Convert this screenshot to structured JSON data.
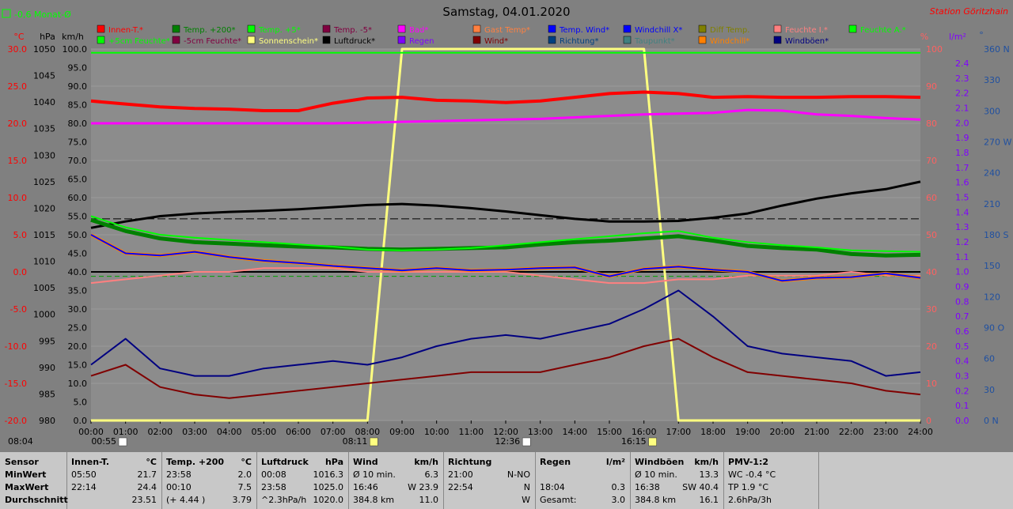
{
  "header": {
    "title": "Samstag, 04.01.2020",
    "station": "Station Göritzhain",
    "month_avg": "-0,6 Monat-Ø"
  },
  "legend": {
    "row1": [
      {
        "label": "Innen-T.*",
        "color": "#ff0000"
      },
      {
        "label": "Temp. +200*",
        "color": "#008000"
      },
      {
        "label": "Temp. +5*",
        "color": "#00ff00"
      },
      {
        "label": "Temp. -5*",
        "color": "#800040"
      },
      {
        "label": "Bad*",
        "color": "#ff00ff"
      },
      {
        "label": "Gast Temp*",
        "color": "#ff8040"
      },
      {
        "label": "Temp. Wind*",
        "color": "#0000ff"
      },
      {
        "label": "Windchill X*",
        "color": "#0000ff"
      },
      {
        "label": "Diff Temp.",
        "color": "#808000"
      },
      {
        "label": "Feuchte I.*",
        "color": "#ff8080"
      },
      {
        "label": "Feuchte A.*",
        "color": "#00ff00"
      }
    ],
    "row2": [
      {
        "label": "+5cm Feuchte*",
        "color": "#00ff00"
      },
      {
        "label": "-5cm Feuchte*",
        "color": "#800040"
      },
      {
        "label": "Sonnenschein*",
        "color": "#ffff80"
      },
      {
        "label": "Luftdruck*",
        "color": "#000000"
      },
      {
        "label": "Regen",
        "color": "#8000ff"
      },
      {
        "label": "Wind*",
        "color": "#800000"
      },
      {
        "label": "Richtung*",
        "color": "#004080"
      },
      {
        "label": "Taupunkt*",
        "color": "#408080"
      },
      {
        "label": "Windchill*",
        "color": "#ff8000"
      },
      {
        "label": "Windböen*",
        "color": "#000080"
      }
    ]
  },
  "axis_units": {
    "c": "°C",
    "hpa": "hPa",
    "kmh": "km/h",
    "pct": "%",
    "lm2": "l/m²",
    "deg": "°"
  },
  "axes": {
    "temp": [
      "30.0",
      "25.0",
      "20.0",
      "15.0",
      "10.0",
      "5.0",
      "0.0",
      "-5.0",
      "-10.0",
      "-15.0",
      "-20.0"
    ],
    "hpa": [
      "1050",
      "1045",
      "1040",
      "1035",
      "1030",
      "1025",
      "1020",
      "1015",
      "1010",
      "1005",
      "1000",
      "995",
      "990",
      "985",
      "980"
    ],
    "kmh": [
      "100.0",
      "95.0",
      "90.0",
      "85.0",
      "80.0",
      "75.0",
      "70.0",
      "65.0",
      "60.0",
      "55.0",
      "50.0",
      "45.0",
      "40.0",
      "35.0",
      "30.0",
      "25.0",
      "20.0",
      "15.0",
      "10.0",
      "5.0",
      "0.0"
    ],
    "pct": [
      "100",
      "90",
      "80",
      "70",
      "60",
      "50",
      "40",
      "30",
      "20",
      "10",
      "0"
    ],
    "rain": [
      "2.4",
      "2.3",
      "2.2",
      "2.1",
      "2.0",
      "1.9",
      "1.8",
      "1.7",
      "1.6",
      "1.5",
      "1.4",
      "1.3",
      "1.2",
      "1.1",
      "1.0",
      "0.9",
      "0.8",
      "0.7",
      "0.6",
      "0.5",
      "0.4",
      "0.3",
      "0.2",
      "0.1",
      "0.0"
    ],
    "dir": [
      "360 N",
      "330",
      "300",
      "270 W",
      "240",
      "210",
      "180 S",
      "150",
      "120",
      "90 O",
      "60",
      "30",
      "0 N"
    ],
    "time": [
      "00:00",
      "01:00",
      "02:00",
      "03:00",
      "04:00",
      "05:00",
      "06:00",
      "07:00",
      "08:00",
      "09:00",
      "10:00",
      "11:00",
      "12:00",
      "13:00",
      "14:00",
      "15:00",
      "16:00",
      "17:00",
      "18:00",
      "19:00",
      "20:00",
      "21:00",
      "22:00",
      "23:00",
      "24:00"
    ]
  },
  "sun_marks": {
    "sunrise_time": "08:11",
    "sunset_time": "16:15",
    "moonrise_time": "00:55",
    "moonset_time": "12:36",
    "day_start": "08:04"
  },
  "chart_data": {
    "type": "line",
    "title": "Samstag, 04.01.2020",
    "x_hours": [
      0,
      1,
      2,
      3,
      4,
      5,
      6,
      7,
      8,
      9,
      10,
      11,
      12,
      13,
      14,
      15,
      16,
      17,
      18,
      19,
      20,
      21,
      22,
      23,
      24
    ],
    "series": [
      {
        "name": "Innen-T.*",
        "unit": "°C",
        "color": "#ff0000",
        "values": [
          23.0,
          22.6,
          22.2,
          22.0,
          21.9,
          21.7,
          21.7,
          22.7,
          23.4,
          23.5,
          23.1,
          23.0,
          22.8,
          23.0,
          23.5,
          24.0,
          24.2,
          24.0,
          23.5,
          23.6,
          23.5,
          23.5,
          23.6,
          23.6,
          23.5
        ]
      },
      {
        "name": "Bad*",
        "unit": "°C",
        "color": "#ff00ff",
        "values": [
          20.0,
          20.0,
          20.0,
          20.0,
          20.0,
          20.0,
          20.0,
          20.0,
          20.1,
          20.2,
          20.3,
          20.4,
          20.5,
          20.6,
          20.8,
          21.0,
          21.2,
          21.3,
          21.4,
          21.8,
          21.7,
          21.2,
          21.0,
          20.7,
          20.5
        ]
      },
      {
        "name": "Temp. +200*",
        "unit": "°C",
        "color": "#008000",
        "values": [
          7.0,
          5.5,
          4.5,
          4.0,
          3.8,
          3.6,
          3.4,
          3.3,
          3.1,
          3.0,
          3.1,
          3.2,
          3.3,
          3.7,
          4.0,
          4.2,
          4.5,
          4.8,
          4.2,
          3.5,
          3.2,
          3.0,
          2.4,
          2.2,
          2.3
        ]
      },
      {
        "name": "Temp. +5*",
        "unit": "°C",
        "color": "#00ff00",
        "values": [
          7.5,
          6.0,
          5.0,
          4.6,
          4.3,
          4.0,
          3.7,
          3.4,
          3.0,
          2.9,
          3.0,
          3.2,
          3.6,
          4.0,
          4.4,
          4.8,
          5.2,
          5.5,
          4.6,
          4.0,
          3.6,
          3.3,
          2.9,
          2.8,
          2.7
        ]
      },
      {
        "name": "Temp. Wind*",
        "unit": "°C",
        "color": "#0000ff",
        "values": [
          5.0,
          2.5,
          2.2,
          2.7,
          2.0,
          1.5,
          1.2,
          0.8,
          0.5,
          0.2,
          0.5,
          0.2,
          0.3,
          0.5,
          0.6,
          -0.6,
          0.4,
          0.7,
          0.3,
          0.0,
          -1.2,
          -0.8,
          -0.7,
          -0.2,
          -0.8
        ]
      },
      {
        "name": "Luftdruck*",
        "unit": "hPa",
        "color": "#000000",
        "values": [
          1016.3,
          1017.5,
          1018.5,
          1019.0,
          1019.3,
          1019.5,
          1019.8,
          1020.2,
          1020.6,
          1020.8,
          1020.5,
          1020.0,
          1019.4,
          1018.7,
          1018.0,
          1017.5,
          1017.5,
          1017.6,
          1018.2,
          1019.0,
          1020.5,
          1021.8,
          1022.8,
          1023.6,
          1025.0
        ]
      },
      {
        "name": "Feuchte I.*",
        "unit": "%",
        "color": "#ff8080",
        "values": [
          37,
          38,
          39,
          40,
          40,
          41,
          41,
          41,
          40,
          40,
          40,
          40,
          40,
          39,
          38,
          37,
          37,
          38,
          38,
          39,
          39,
          39,
          40,
          39,
          39
        ]
      },
      {
        "name": "Feuchte A.*",
        "unit": "%",
        "color": "#00ff00",
        "values": [
          99,
          99,
          99,
          99,
          99,
          99,
          99,
          99,
          99,
          99,
          99,
          99,
          99,
          99,
          99,
          99,
          99,
          99,
          99,
          99,
          99,
          99,
          99,
          99,
          99
        ]
      },
      {
        "name": "Sonnenschein*",
        "unit": "%",
        "color": "#ffff80",
        "values": [
          0,
          0,
          0,
          0,
          0,
          0,
          0,
          0,
          0,
          100,
          100,
          100,
          100,
          100,
          100,
          100,
          100,
          0,
          0,
          0,
          0,
          0,
          0,
          0,
          0
        ]
      },
      {
        "name": "Wind*",
        "unit": "km/h",
        "color": "#800000",
        "values": [
          12,
          15,
          9,
          7,
          6,
          7,
          8,
          9,
          10,
          11,
          12,
          13,
          13,
          13,
          15,
          17,
          20,
          22,
          17,
          13,
          12,
          11,
          10,
          8,
          7
        ]
      },
      {
        "name": "Windböen*",
        "unit": "km/h",
        "color": "#000080",
        "values": [
          15,
          22,
          14,
          12,
          12,
          14,
          15,
          16,
          15,
          17,
          20,
          22,
          23,
          22,
          24,
          26,
          30,
          35,
          28,
          20,
          18,
          17,
          16,
          12,
          13
        ]
      }
    ]
  },
  "table": {
    "cols": [
      {
        "header": "Sensor",
        "header_unit": "",
        "min": "MinWert",
        "max": "MaxWert",
        "avg": "Durchschnitt"
      },
      {
        "header": "Innen-T.",
        "header_unit": "°C",
        "min_t": "05:50",
        "min_v": "21.7",
        "max_t": "22:14",
        "max_v": "24.4",
        "avg_t": "",
        "avg_v": "23.51"
      },
      {
        "header": "Temp. +200",
        "header_unit": "°C",
        "min_t": "23:58",
        "min_v": "2.0",
        "max_t": "00:10",
        "max_v": "7.5",
        "avg_t": "(+ 4.44 )",
        "avg_v": "3.79"
      },
      {
        "header": "Luftdruck",
        "header_unit": "hPa",
        "min_t": "00:08",
        "min_v": "1016.3",
        "max_t": "23:58",
        "max_v": "1025.0",
        "avg_t": "^2.3hPa/h",
        "avg_v": "1020.0"
      },
      {
        "header": "Wind",
        "header_unit": "km/h",
        "min_t": "Ø 10 min.",
        "min_v": "6.3",
        "max_t": "16:46",
        "max_v": "W 23.9",
        "avg_t": "384.8 km",
        "avg_v": "11.0"
      },
      {
        "header": "Richtung",
        "header_unit": "",
        "min_t": "21:00",
        "min_v": "N-NO",
        "max_t": "22:54",
        "max_v": "N",
        "avg_t": "",
        "avg_v": "W"
      },
      {
        "header": "Regen",
        "header_unit": "l/m²",
        "min_t": "",
        "min_v": "",
        "max_t": "18:04",
        "max_v": "0.3",
        "avg_t": "Gesamt:",
        "avg_v": "3.0"
      },
      {
        "header": "Windböen",
        "header_unit": "km/h",
        "min_t": "Ø 10 min.",
        "min_v": "13.3",
        "max_t": "16:38",
        "max_v": "SW 40.4",
        "avg_t": "384.8 km",
        "avg_v": "16.1"
      },
      {
        "header": "PMV-1:2",
        "header_unit": "",
        "min_t": "WC -0.4 °C",
        "min_v": "",
        "max_t": "TP 1.9 °C",
        "max_v": "",
        "avg_t": "2.6hPa/3h",
        "avg_v": ""
      }
    ]
  }
}
